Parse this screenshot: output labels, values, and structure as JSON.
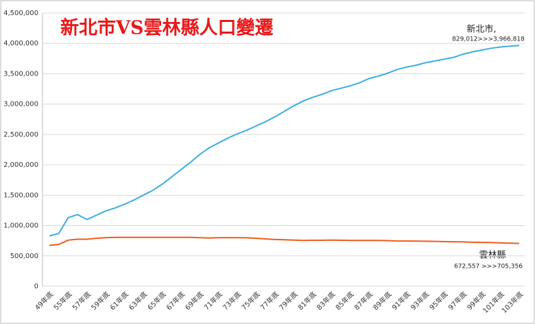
{
  "chart_data": {
    "type": "line",
    "title": "新北市VS雲林縣人口變遷",
    "annotations": [
      {
        "label": "新北市,",
        "text": "829,012>>>3,966,818"
      },
      {
        "label": "雲林縣",
        "text": "672,557 >>>705,356"
      }
    ],
    "categories": [
      "49年底",
      null,
      "55年底",
      null,
      "57年底",
      null,
      "59年底",
      null,
      "61年底",
      null,
      "63年底",
      null,
      "65年底",
      null,
      "67年底",
      null,
      "69年底",
      null,
      "71年底",
      null,
      "73年底",
      null,
      "75年底",
      null,
      "77年底",
      null,
      "79年底",
      null,
      "81年底",
      null,
      "83年底",
      null,
      "85年底",
      null,
      "87年底",
      null,
      "89年底",
      null,
      "91年底",
      null,
      "93年底",
      null,
      "95年底",
      null,
      "97年底",
      null,
      "99年底",
      null,
      "101年底",
      null,
      "103年底"
    ],
    "series": [
      {
        "name": "新北市",
        "color": "#3aaee0",
        "values": [
          829012,
          870000,
          1130000,
          1180000,
          1100000,
          1170000,
          1240000,
          1290000,
          1350000,
          1420000,
          1500000,
          1580000,
          1680000,
          1800000,
          1920000,
          2040000,
          2170000,
          2280000,
          2360000,
          2440000,
          2510000,
          2570000,
          2640000,
          2710000,
          2790000,
          2880000,
          2970000,
          3050000,
          3110000,
          3160000,
          3220000,
          3260000,
          3300000,
          3350000,
          3420000,
          3460000,
          3510000,
          3570000,
          3610000,
          3640000,
          3680000,
          3710000,
          3740000,
          3770000,
          3820000,
          3860000,
          3890000,
          3920000,
          3940000,
          3955000,
          3966818
        ]
      },
      {
        "name": "雲林縣",
        "color": "#f05a1a",
        "values": [
          672557,
          690000,
          760000,
          775000,
          775000,
          790000,
          800000,
          805000,
          805000,
          805000,
          805000,
          805000,
          805000,
          805000,
          805000,
          805000,
          800000,
          795000,
          800000,
          800000,
          800000,
          798000,
          790000,
          780000,
          770000,
          765000,
          760000,
          755000,
          757000,
          758000,
          760000,
          757000,
          755000,
          755000,
          755000,
          755000,
          752000,
          745000,
          745000,
          743000,
          742000,
          740000,
          735000,
          733000,
          730000,
          725000,
          722000,
          720000,
          713000,
          710000,
          705356
        ]
      }
    ],
    "ylim": [
      0,
      4500000
    ],
    "yticks": [
      0,
      {
        "value": 500000,
        "label": "500,000"
      },
      {
        "value": 1000000,
        "label": "1,000,000"
      },
      {
        "value": 1500000,
        "label": "1,500,000"
      },
      {
        "value": 2000000,
        "label": "2,000,000"
      },
      {
        "value": 2500000,
        "label": "2,500,000"
      },
      {
        "value": 3000000,
        "label": "3,000,000"
      },
      {
        "value": 3500000,
        "label": "3,500,000"
      },
      {
        "value": 4000000,
        "label": "4,000,000"
      },
      {
        "value": 4500000,
        "label": "4,500,000"
      }
    ],
    "grid": true
  }
}
